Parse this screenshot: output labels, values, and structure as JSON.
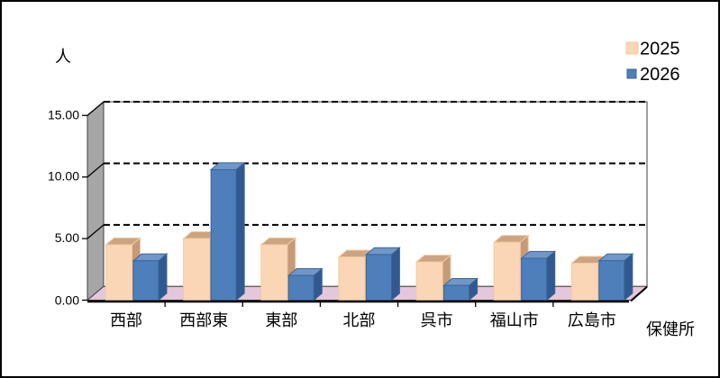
{
  "chart_data": {
    "type": "bar",
    "variant": "3d-clustered-column",
    "title": "",
    "categories": [
      "西部",
      "西部東",
      "東部",
      "北部",
      "呉市",
      "福山市",
      "広島市"
    ],
    "series": [
      {
        "name": "2025",
        "values": [
          4.5,
          5.0,
          4.5,
          3.5,
          3.1,
          4.7,
          3.0
        ],
        "color_front": "#FBD6B6",
        "color_top": "#CDA483",
        "color_side": "#C59B77",
        "color_stroke": "#EFCBA4"
      },
      {
        "name": "2026",
        "values": [
          3.2,
          10.6,
          2.0,
          3.7,
          1.2,
          3.4,
          3.2
        ],
        "color_front": "#4E7FBB",
        "color_top": "#7196C7",
        "color_side": "#30598F",
        "color_stroke": "#3C6497"
      }
    ],
    "ylabel": "人",
    "xlabel": "保健所",
    "ylim": [
      0,
      15
    ],
    "ytick_step": 5,
    "ytick_labels": [
      "0.00",
      "5.00",
      "10.00",
      "15.00"
    ],
    "grid": true,
    "gridline_style": "dashed",
    "legend_position": "top-right"
  },
  "colors": {
    "wall_side": "#A6A6A6",
    "wall_back": "#FFFFFF",
    "floor": "#E4C7DA",
    "axis_line": "#000000",
    "wall_border": "#404040",
    "gridline": "#000000",
    "text": "#000000"
  }
}
